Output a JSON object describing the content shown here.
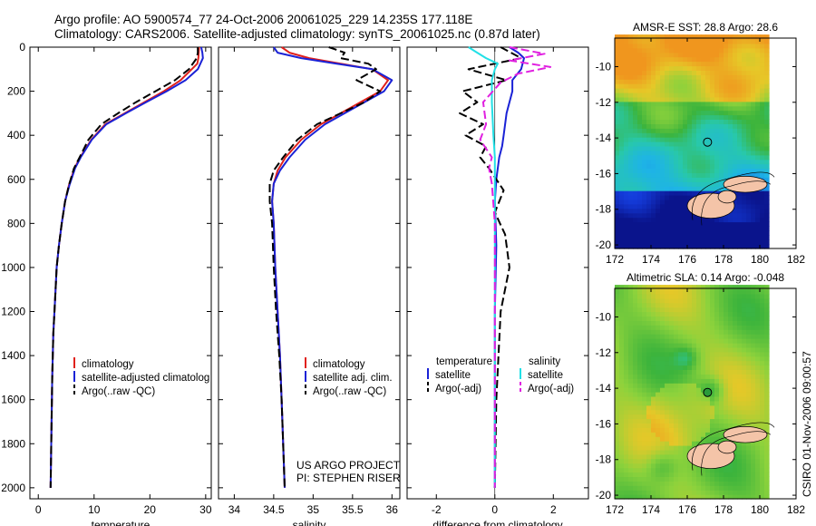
{
  "figure": {
    "title_line1": "Argo profile: AO 5900574_77 24-Oct-2006 20061025_229 14.235S 177.118E",
    "title_line2": "Climatology: CARS2006. Satellite-adjusted climatology: synTS_20061025.nc (0.87d later)",
    "side_label": "CSIRO 01-Nov-2006 09:00:57",
    "project_line1": "US ARGO PROJECT",
    "project_line2": "PI: STEPHEN RISER"
  },
  "colors": {
    "climatology": "#e0201b",
    "satellite": "#1a22d6",
    "argo": "#000000",
    "sal_satellite": "#22e0e6",
    "sal_argo": "#e020e0",
    "land": "#f4c4a8"
  },
  "chart_data": [
    {
      "type": "line",
      "id": "temperature",
      "xlabel": "temperature",
      "xlim": [
        -1.5,
        31
      ],
      "ylim": [
        2050,
        0
      ],
      "xticks": [
        0,
        10,
        20,
        30
      ],
      "yticks": [
        0,
        200,
        400,
        600,
        800,
        1000,
        1200,
        1400,
        1600,
        1800,
        2000
      ],
      "legend": [
        "climatology",
        "satellite-adjusted climatolog",
        "Argo(..raw -QC)"
      ],
      "legend_placement": "lower-middle",
      "series": [
        {
          "name": "climatology",
          "style": "solid",
          "color": "climatology",
          "x": [
            28.8,
            28.7,
            28.5,
            27.5,
            25.5,
            22.5,
            19,
            15.5,
            12,
            9.5,
            7.5,
            6.5,
            5.5,
            4.8,
            4.2,
            3.7,
            3.3,
            3.0,
            2.7,
            2.5,
            2.35,
            2.2
          ],
          "y": [
            0,
            50,
            75,
            100,
            150,
            200,
            250,
            300,
            350,
            420,
            500,
            550,
            625,
            700,
            800,
            900,
            1000,
            1150,
            1300,
            1500,
            1750,
            2000
          ]
        },
        {
          "name": "satellite-adjusted climatolog",
          "style": "solid",
          "color": "satellite",
          "x": [
            29.2,
            29.4,
            29.5,
            28.6,
            26.4,
            23.0,
            19.3,
            15.7,
            12.2,
            9.6,
            7.6,
            6.6,
            5.6,
            4.8,
            4.2,
            3.7,
            3.3,
            3.0,
            2.7,
            2.5,
            2.35,
            2.2
          ],
          "y": [
            0,
            25,
            50,
            100,
            150,
            200,
            250,
            300,
            350,
            420,
            500,
            550,
            625,
            700,
            800,
            900,
            1000,
            1150,
            1300,
            1500,
            1750,
            2000
          ]
        },
        {
          "name": "Argo(..raw -QC)",
          "style": "dash",
          "color": "argo",
          "x": [
            28.6,
            28.6,
            28.4,
            27.0,
            24.5,
            21.0,
            17.5,
            14.3,
            11.3,
            9.0,
            7.4,
            6.4,
            5.5,
            4.8,
            4.2,
            3.7,
            3.3,
            3.0,
            2.7,
            2.5,
            2.35,
            2.2
          ],
          "y": [
            0,
            25,
            50,
            100,
            150,
            200,
            250,
            300,
            350,
            420,
            500,
            550,
            625,
            700,
            800,
            900,
            1000,
            1150,
            1300,
            1500,
            1750,
            2000
          ]
        }
      ]
    },
    {
      "type": "line",
      "id": "salinity",
      "xlabel": "salinity",
      "xlim": [
        33.8,
        36.1
      ],
      "ylim": [
        2050,
        0
      ],
      "xticks": [
        34,
        34.5,
        35,
        35.5,
        36
      ],
      "legend": [
        "climatology",
        "satellite adj. clim.",
        "Argo(..raw -QC)"
      ],
      "legend_placement": "lower-right",
      "series": [
        {
          "name": "climatology",
          "style": "solid",
          "color": "climatology",
          "x": [
            34.6,
            34.7,
            34.95,
            35.35,
            35.75,
            35.95,
            35.85,
            35.6,
            35.35,
            35.1,
            34.85,
            34.65,
            34.55,
            34.5,
            34.48,
            34.5,
            34.52,
            34.55,
            34.58,
            34.6,
            34.62,
            34.64
          ],
          "y": [
            0,
            25,
            50,
            75,
            100,
            150,
            200,
            250,
            300,
            350,
            420,
            500,
            560,
            620,
            700,
            800,
            1000,
            1200,
            1400,
            1600,
            1800,
            2000
          ]
        },
        {
          "name": "satellite adj. clim.",
          "style": "solid",
          "color": "satellite",
          "x": [
            34.5,
            34.55,
            34.85,
            35.3,
            35.75,
            36.0,
            35.9,
            35.65,
            35.4,
            35.15,
            34.9,
            34.7,
            34.58,
            34.5,
            34.48,
            34.5,
            34.52,
            34.55,
            34.58,
            34.6,
            34.62,
            34.64
          ],
          "y": [
            0,
            25,
            50,
            75,
            100,
            150,
            200,
            250,
            300,
            350,
            420,
            500,
            560,
            620,
            700,
            800,
            1000,
            1200,
            1400,
            1600,
            1800,
            2000
          ]
        },
        {
          "name": "Argo(..raw -QC)",
          "style": "dash",
          "color": "argo",
          "x": [
            35.2,
            35.4,
            35.35,
            35.7,
            35.8,
            35.55,
            35.85,
            35.65,
            35.35,
            35.05,
            34.8,
            34.62,
            34.5,
            34.45,
            34.45,
            34.48,
            34.5,
            34.53,
            34.57,
            34.6,
            34.62,
            34.64
          ],
          "y": [
            0,
            25,
            50,
            75,
            100,
            150,
            200,
            250,
            300,
            350,
            420,
            500,
            560,
            620,
            700,
            800,
            1000,
            1200,
            1400,
            1600,
            1800,
            2000
          ]
        }
      ]
    },
    {
      "type": "line",
      "id": "difference",
      "xlabel": "difference from climatology",
      "xlim": [
        -3,
        3.2
      ],
      "ylim": [
        2050,
        0
      ],
      "xticks": [
        -2,
        0,
        2
      ],
      "legend": [
        "temperature",
        "satellite",
        "Argo(-adj)",
        "salinity",
        "satellite",
        "Argo(-adj)"
      ],
      "legend_placement": "lower-middle",
      "series": [
        {
          "name": "satellite",
          "group": "temperature",
          "style": "solid",
          "color": "satellite",
          "x": [
            0.5,
            0.8,
            1.0,
            0.9,
            0.6,
            0.6,
            0.4,
            0.3,
            0.25,
            0.15,
            0.1,
            0.05,
            0.0,
            0.05,
            0.0,
            0.0,
            0.0,
            0.0
          ],
          "y": [
            0,
            25,
            50,
            100,
            150,
            200,
            300,
            400,
            450,
            500,
            550,
            600,
            700,
            900,
            1200,
            1500,
            1800,
            2000
          ]
        },
        {
          "name": "Argo(-adj)",
          "group": "temperature",
          "style": "dash",
          "color": "argo",
          "x": [
            0.2,
            0.9,
            -0.9,
            0.4,
            -1.1,
            -0.6,
            -1.2,
            -0.4,
            -1.0,
            -0.3,
            -0.5,
            -0.2,
            0.3,
            0.0,
            0.35,
            0.5,
            0.2,
            0.05,
            0.0
          ],
          "y": [
            0,
            50,
            100,
            150,
            200,
            250,
            300,
            350,
            400,
            450,
            500,
            550,
            650,
            750,
            850,
            1000,
            1200,
            1600,
            2000
          ]
        },
        {
          "name": "satellite",
          "group": "salinity",
          "style": "solid",
          "color": "sal_satellite",
          "x": [
            -0.9,
            -0.6,
            -0.3,
            0.1,
            0.0,
            -0.1,
            -0.1,
            -0.05,
            0.0,
            0.0,
            0.0,
            0.0,
            0.0
          ],
          "y": [
            0,
            25,
            50,
            75,
            100,
            150,
            250,
            400,
            500,
            700,
            1000,
            1500,
            2000
          ]
        },
        {
          "name": "Argo(-adj)",
          "group": "salinity",
          "style": "dash",
          "color": "sal_argo",
          "x": [
            0.5,
            1.7,
            0.5,
            1.9,
            0.8,
            0.2,
            -0.4,
            -0.3,
            -0.5,
            -0.1,
            -0.2,
            -0.1,
            0.0,
            0.0,
            0.0
          ],
          "y": [
            0,
            30,
            60,
            90,
            120,
            160,
            250,
            350,
            420,
            500,
            550,
            620,
            800,
            1200,
            2000
          ]
        }
      ]
    },
    {
      "type": "heatmap",
      "id": "sst_map",
      "title": "AMSR-E SST: 28.8 Argo: 28.6",
      "xlim": [
        172,
        182
      ],
      "ylim": [
        -20.2,
        -8.4
      ],
      "xticks": [
        172,
        174,
        176,
        178,
        180,
        182
      ],
      "yticks": [
        -10,
        -12,
        -14,
        -16,
        -18,
        -20
      ],
      "data_extent_lon": [
        172,
        180.5
      ],
      "argo_marker": {
        "lon": 177.118,
        "lat": -14.235
      }
    },
    {
      "type": "heatmap",
      "id": "sla_map",
      "title": "Altimetric SLA: 0.14 Argo: -0.048",
      "xlim": [
        172,
        182
      ],
      "ylim": [
        -20.2,
        -8.4
      ],
      "xticks": [
        172,
        174,
        176,
        178,
        180,
        182
      ],
      "yticks": [
        -10,
        -12,
        -14,
        -16,
        -18,
        -20
      ],
      "data_extent_lon": [
        172,
        180.5
      ],
      "argo_marker": {
        "lon": 177.118,
        "lat": -14.235
      }
    }
  ]
}
